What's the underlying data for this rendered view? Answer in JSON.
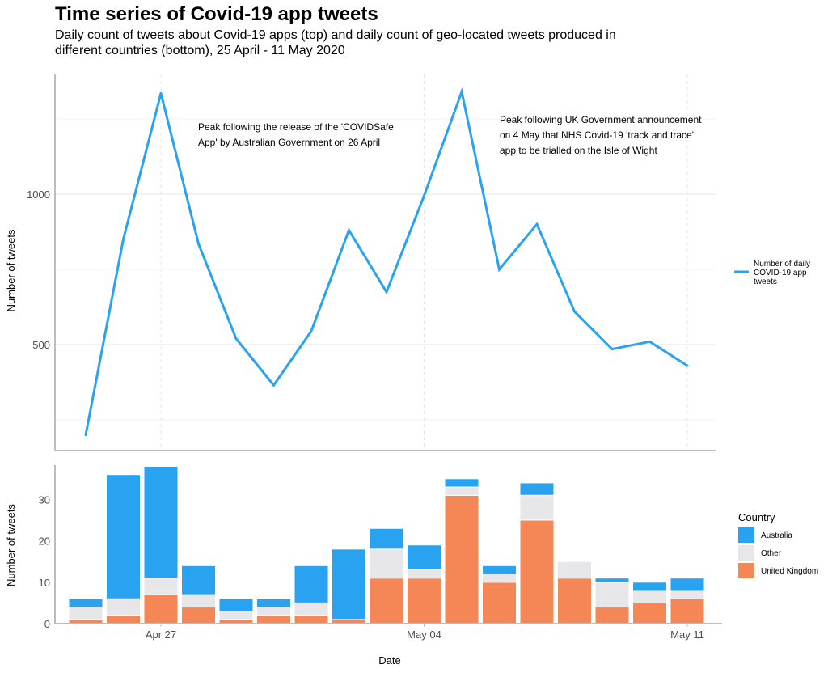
{
  "title": "Time series of Covid-19 app tweets",
  "subtitle": "Daily count of tweets about Covid-19 apps (top) and daily count of geo-located tweets produced in different countries (bottom), 25 April - 11 May 2020",
  "chart_data": [
    {
      "type": "line",
      "x": [
        "2020-04-25",
        "2020-04-26",
        "2020-04-27",
        "2020-04-28",
        "2020-04-29",
        "2020-04-30",
        "2020-05-01",
        "2020-05-02",
        "2020-05-03",
        "2020-05-04",
        "2020-05-05",
        "2020-05-06",
        "2020-05-07",
        "2020-05-08",
        "2020-05-09",
        "2020-05-10",
        "2020-05-11"
      ],
      "series": [
        {
          "name": "Number of daily COVID-19 app tweets",
          "color": "#29a3ef",
          "values": [
            200,
            850,
            1335,
            835,
            520,
            365,
            545,
            880,
            675,
            995,
            1340,
            750,
            900,
            610,
            485,
            510,
            430
          ]
        }
      ],
      "ylabel": "Number of tweets",
      "yticks": [
        500,
        1000
      ],
      "ylim": [
        170,
        1390
      ],
      "annotations": [
        {
          "text": [
            "Peak following the release of the 'COVIDSafe",
            "App' by Australian Government on 26 April"
          ]
        },
        {
          "text": [
            "Peak following UK Government announcement",
            "on 4 May that NHS Covid-19 'track and trace'",
            "app to be trialled on the Isle of Wight"
          ]
        }
      ],
      "legend_labels": [
        "Number of daily",
        "COVID-19 app",
        "tweets"
      ],
      "legend_position": "right",
      "grid": true
    },
    {
      "type": "bar",
      "stacked": true,
      "categories": [
        "2020-04-25",
        "2020-04-26",
        "2020-04-27",
        "2020-04-28",
        "2020-04-29",
        "2020-04-30",
        "2020-05-01",
        "2020-05-02",
        "2020-05-03",
        "2020-05-04",
        "2020-05-05",
        "2020-05-06",
        "2020-05-07",
        "2020-05-08",
        "2020-05-09",
        "2020-05-10",
        "2020-05-11"
      ],
      "series": [
        {
          "name": "United Kingdom",
          "color": "#f58656",
          "values": [
            1,
            2,
            7,
            4,
            1,
            2,
            2,
            1,
            11,
            11,
            31,
            10,
            25,
            11,
            4,
            5,
            6
          ]
        },
        {
          "name": "Other",
          "color": "#e7e6e8",
          "values": [
            3,
            4,
            4,
            3,
            2,
            2,
            3,
            0,
            7,
            2,
            2,
            2,
            6,
            4,
            6,
            3,
            2
          ]
        },
        {
          "name": "Australia",
          "color": "#29a3ef",
          "values": [
            2,
            30,
            27,
            7,
            3,
            2,
            9,
            17,
            5,
            6,
            2,
            2,
            3,
            0,
            1,
            2,
            3
          ]
        }
      ],
      "ylabel": "Number of tweets",
      "yticks": [
        0,
        10,
        20,
        30
      ],
      "ylim": [
        0,
        38.5
      ],
      "xlabel": "Date",
      "xticks": [
        {
          "date": "2020-04-27",
          "label": "Apr 27"
        },
        {
          "date": "2020-05-04",
          "label": "May 04"
        },
        {
          "date": "2020-05-11",
          "label": "May 11"
        }
      ],
      "legend_title": "Country",
      "legend_order": [
        "Australia",
        "Other",
        "United Kingdom"
      ],
      "legend_position": "right"
    }
  ]
}
